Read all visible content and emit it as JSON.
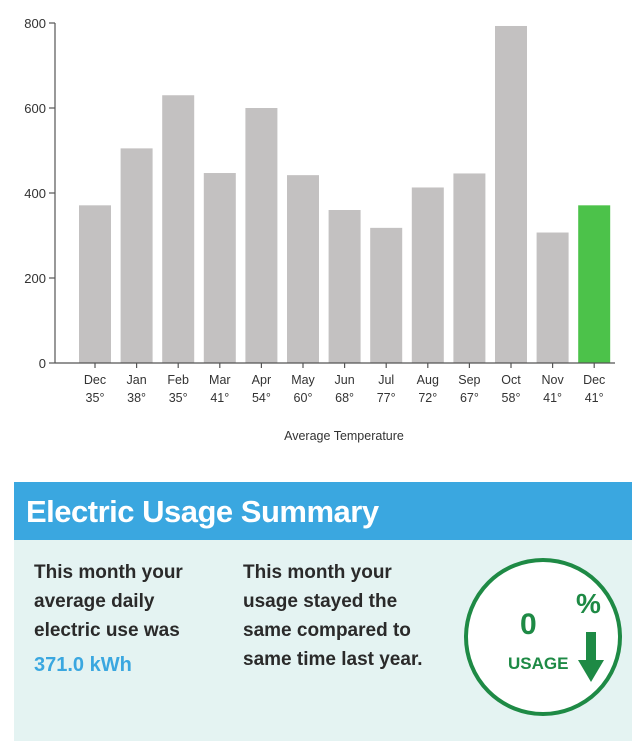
{
  "chart_data": {
    "type": "bar",
    "categories": [
      "Dec",
      "Jan",
      "Feb",
      "Mar",
      "Apr",
      "May",
      "Jun",
      "Jul",
      "Aug",
      "Sep",
      "Oct",
      "Nov",
      "Dec"
    ],
    "temperatures": [
      "35°",
      "38°",
      "35°",
      "41°",
      "54°",
      "60°",
      "68°",
      "77°",
      "72°",
      "67°",
      "58°",
      "41°",
      "41°"
    ],
    "values": [
      371,
      505,
      630,
      447,
      600,
      442,
      360,
      318,
      413,
      446,
      793,
      307,
      371
    ],
    "highlight_index": 12,
    "xlabel": "Average Temperature",
    "ylabel": "",
    "ylim": [
      0,
      800
    ],
    "yticks": [
      0,
      200,
      400,
      600,
      800
    ],
    "grid": false,
    "colors": {
      "bar": "#c3c1c1",
      "highlight": "#4cc24a",
      "axis": "#555555",
      "text": "#333333"
    }
  },
  "summary": {
    "title": "Electric Usage Summary",
    "left_lines": [
      "This month your",
      "average daily",
      "electric use was"
    ],
    "daily_use": "371.0 kWh",
    "mid_lines": [
      "This month your",
      "usage stayed the",
      "same compared to",
      "same time last year."
    ],
    "badge": {
      "value": "0",
      "percent": "%",
      "label": "USAGE",
      "arrow_icon": "down-arrow-icon"
    },
    "colors": {
      "header": "#3aa7e0",
      "body": "#e4f3f2",
      "accent": "#1e8a45",
      "kwh": "#3aa7e0"
    }
  }
}
